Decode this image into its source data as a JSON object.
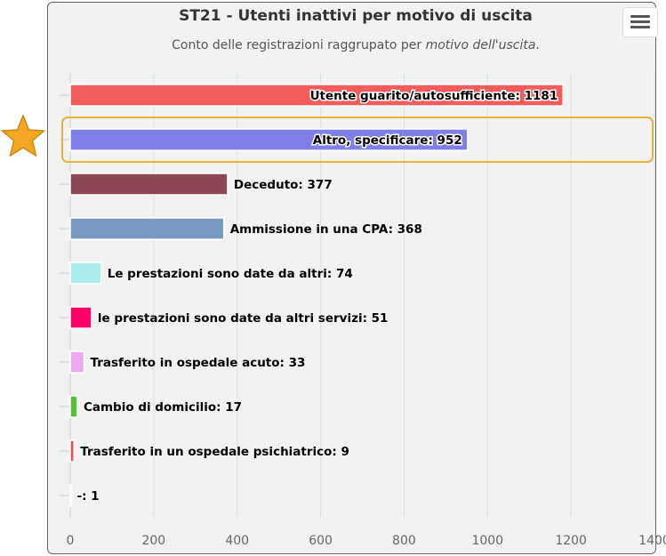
{
  "chart_data": {
    "type": "bar",
    "orientation": "horizontal",
    "title": "ST21 - Utenti inattivi per motivo di uscita",
    "subtitle_prefix": "Conto delle registrazioni raggrupato per ",
    "subtitle_emphasis": "motivo dell'uscita",
    "subtitle_suffix": ".",
    "categories": [
      "Utente guarito/autosufficiente",
      "Altro, specificare",
      "Deceduto",
      "Ammissione in una CPA",
      "Le prestazioni sono date da altri",
      "le prestazioni sono date da altri servizi",
      "Trasferito in ospedale acuto",
      "Cambio di domicilio",
      "Trasferito in un ospedale psichiatrico",
      "-"
    ],
    "values": [
      1181,
      952,
      377,
      368,
      74,
      51,
      33,
      17,
      9,
      1
    ],
    "colors": [
      "#f45b5b",
      "#7f7fe8",
      "#8d4654",
      "#7798bf",
      "#aaeeee",
      "#ff0066",
      "#eeaaee",
      "#55bf3b",
      "#df5353",
      "#7798bf"
    ],
    "xlim": [
      0,
      1400
    ],
    "xticks": [
      0,
      200,
      400,
      600,
      800,
      1000,
      1200,
      1400
    ],
    "grid": true,
    "highlighted_category": "Altro, specificare",
    "highlight_color": "#e8b13c",
    "star_color": "#f5a623"
  },
  "menu": {
    "icon": "hamburger-menu-icon"
  }
}
